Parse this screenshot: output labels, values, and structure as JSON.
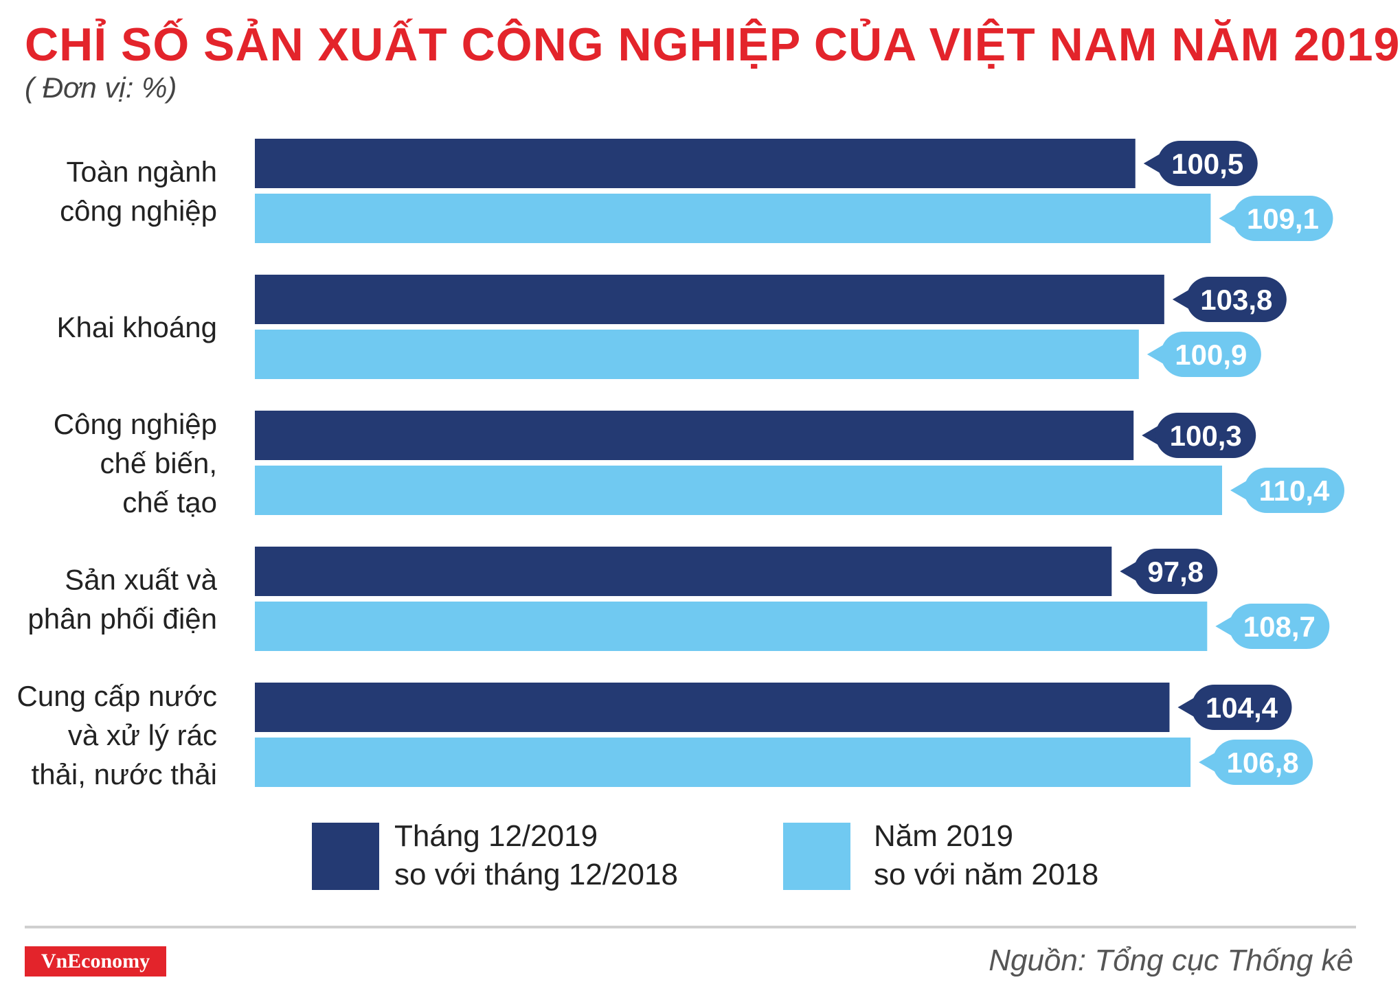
{
  "title": "CHỈ SỐ SẢN XUẤT CÔNG NGHIỆP CỦA VIỆT NAM NĂM 2019",
  "unit": "( Đơn vị: %)",
  "source": "Nguồn: Tổng cục Thống kê",
  "logo_text": "VnEconomy",
  "colors": {
    "title": "#e3242b",
    "series_dark": "#243a73",
    "series_light": "#70c9f1"
  },
  "chart_data": {
    "type": "bar",
    "orientation": "horizontal",
    "categories": [
      [
        "Toàn ngành",
        "công nghiệp"
      ],
      [
        "Khai khoáng"
      ],
      [
        "Công nghiệp",
        "chế biến,",
        "chế tạo"
      ],
      [
        "Sản xuất và",
        "phân phối điện"
      ],
      [
        "Cung cấp nước",
        "và xử lý rác",
        "thải, nước thải"
      ]
    ],
    "series": [
      {
        "name": "Tháng 12/2019 so với tháng 12/2018",
        "legend_lines": [
          "Tháng 12/2019",
          "so với tháng 12/2018"
        ],
        "color": "#243a73",
        "values": [
          100.5,
          103.8,
          100.3,
          97.8,
          104.4
        ],
        "labels": [
          "100,5",
          "103,8",
          "100,3",
          "97,8",
          "104,4"
        ]
      },
      {
        "name": "Năm 2019 so với năm 2018",
        "legend_lines": [
          "Năm 2019",
          "so với năm 2018"
        ],
        "color": "#70c9f1",
        "values": [
          109.1,
          100.9,
          110.4,
          108.7,
          106.8
        ],
        "labels": [
          "109,1",
          "100,9",
          "110,4",
          "108,7",
          "106,8"
        ]
      }
    ],
    "grid": false,
    "legend_position": "bottom"
  }
}
